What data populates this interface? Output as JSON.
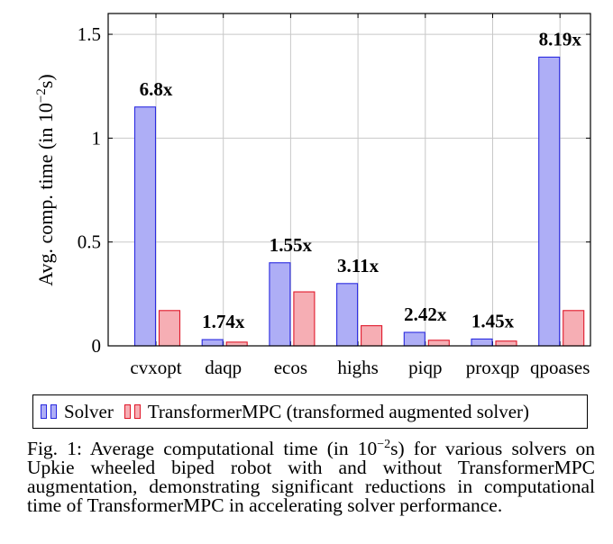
{
  "chart_data": {
    "type": "bar",
    "ylabel": "Avg. comp. time (in 10−2s)",
    "ylabel_parts": {
      "prefix": "Avg. comp. time (in 10",
      "exp": "−2",
      "suffix": "s)"
    },
    "ylim": [
      0,
      1.6
    ],
    "yticks": [
      0,
      0.5,
      1,
      1.5
    ],
    "ytick_labels": [
      "0",
      "0.5",
      "1",
      "1.5"
    ],
    "grid": true,
    "categories": [
      "cvxopt",
      "daqp",
      "ecos",
      "highs",
      "piqp",
      "proxqp",
      "qpoases"
    ],
    "series": [
      {
        "name": "Solver",
        "values": [
          1.15,
          0.03,
          0.4,
          0.3,
          0.065,
          0.033,
          1.39
        ],
        "fill": "#aeaef6",
        "stroke": "#2a2ae0"
      },
      {
        "name": "TransformerMPC (transformed augmented solver)",
        "values": [
          0.17,
          0.018,
          0.26,
          0.097,
          0.027,
          0.023,
          0.17
        ],
        "fill": "#f6aeb4",
        "stroke": "#e0182a"
      }
    ],
    "annotations": [
      "6.8x",
      "1.74x",
      "1.55x",
      "3.11x",
      "2.42x",
      "1.45x",
      "8.19x"
    ],
    "legend_position": "bottom"
  },
  "caption": {
    "label": "Fig. 1:",
    "text_before": " Average computational time (in 10",
    "exp": "−2",
    "text_after": "s) for various solvers on Upkie wheeled biped robot with and without TransformerMPC augmentation, demonstrating significant reductions in computational time of TransformerMPC in accelerating solver performance."
  }
}
